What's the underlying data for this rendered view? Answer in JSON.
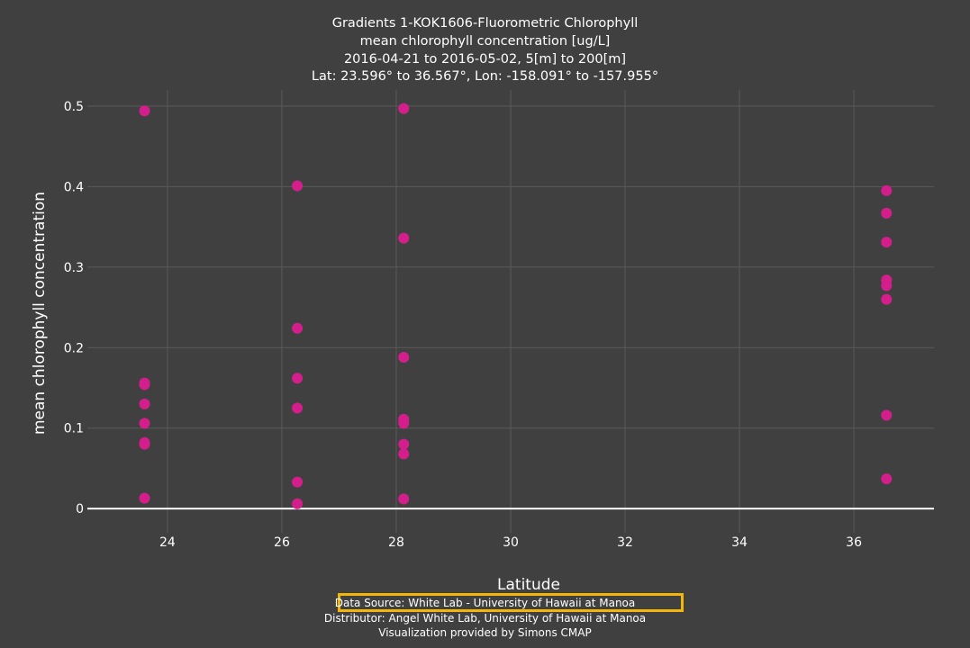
{
  "chart_data": {
    "type": "scatter",
    "title_lines": [
      "Gradients 1-KOK1606-Fluorometric Chlorophyll",
      "mean chlorophyll concentration [ug/L]",
      "2016-04-21 to 2016-05-02, 5[m] to 200[m]",
      "Lat: 23.596° to 36.567°, Lon: -158.091° to -157.955°"
    ],
    "xlabel": "Latitude",
    "ylabel": "mean chlorophyll concentration",
    "xlim": [
      22.6,
      37.4
    ],
    "ylim": [
      -0.03,
      0.52
    ],
    "xticks": [
      24,
      26,
      28,
      30,
      32,
      34,
      36
    ],
    "yticks": [
      0,
      0.1,
      0.2,
      0.3,
      0.4,
      0.5
    ],
    "grid": true,
    "marker_color": "#d41e8c",
    "series": [
      {
        "x": [
          23.6,
          23.6,
          23.6,
          23.6,
          23.6,
          23.6,
          23.6,
          23.6,
          23.6,
          23.6,
          26.27,
          26.27,
          26.27,
          26.27,
          26.27,
          26.27,
          28.13,
          28.13,
          28.13,
          28.13,
          28.13,
          28.13,
          28.13,
          28.13,
          28.13,
          36.57,
          36.57,
          36.57,
          36.57,
          36.57,
          36.57,
          36.57,
          36.57
        ],
        "y": [
          0.494,
          0.156,
          0.154,
          0.13,
          0.106,
          0.082,
          0.08,
          0.013,
          0.081,
          0.155,
          0.401,
          0.224,
          0.162,
          0.125,
          0.033,
          0.006,
          0.497,
          0.336,
          0.188,
          0.111,
          0.106,
          0.08,
          0.068,
          0.012,
          0.108,
          0.395,
          0.367,
          0.331,
          0.284,
          0.277,
          0.26,
          0.116,
          0.037
        ]
      }
    ]
  },
  "footer": {
    "source": "Data Source: White Lab - University of Hawaii at Manoa",
    "distributor": "Distributor: Angel White Lab, University of Hawaii at Manoa",
    "visualization": "Visualization provided by Simons CMAP"
  },
  "colors": {
    "background": "#404040",
    "grid": "#5a5a5a",
    "zero_line": "#ffffff",
    "highlight_box": "#f2b60a"
  }
}
